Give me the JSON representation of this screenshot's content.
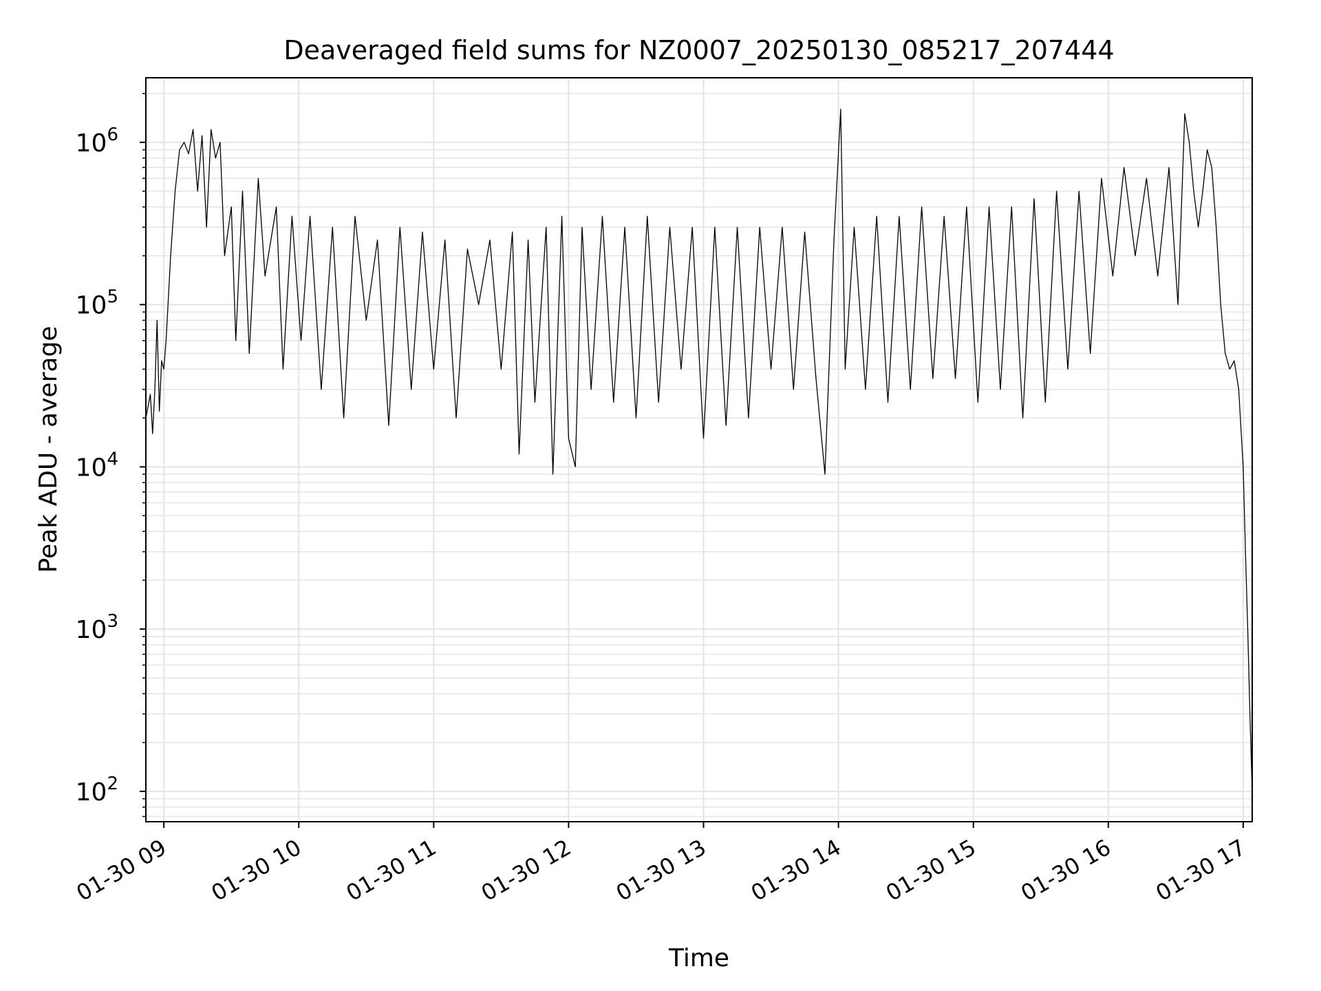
{
  "chart_data": {
    "type": "line",
    "title": "Deaveraged field sums for NZ0007_20250130_085217_207444",
    "xlabel": "Time",
    "ylabel": "Peak ADU - average",
    "yscale": "log",
    "ylim": [
      65,
      2500000
    ],
    "xlim": [
      "2025-01-30 08:52",
      "2025-01-30 17:04"
    ],
    "grid": true,
    "legend": "none",
    "line_color": "#000000",
    "x_ticks": [
      "2025-01-30 09:00",
      "2025-01-30 10:00",
      "2025-01-30 11:00",
      "2025-01-30 12:00",
      "2025-01-30 13:00",
      "2025-01-30 14:00",
      "2025-01-30 15:00",
      "2025-01-30 16:00",
      "2025-01-30 17:00"
    ],
    "x_tick_labels": [
      "01-30 09",
      "01-30 10",
      "01-30 11",
      "01-30 12",
      "01-30 13",
      "01-30 14",
      "01-30 15",
      "01-30 16",
      "01-30 17"
    ],
    "y_ticks": [
      {
        "base": "10",
        "exp": "2",
        "value": 100
      },
      {
        "base": "10",
        "exp": "3",
        "value": 1000
      },
      {
        "base": "10",
        "exp": "4",
        "value": 10000
      },
      {
        "base": "10",
        "exp": "5",
        "value": 100000
      },
      {
        "base": "10",
        "exp": "6",
        "value": 1000000
      }
    ],
    "series": [
      {
        "points": [
          [
            "2025-01-30 08:52",
            20000
          ],
          [
            "2025-01-30 08:54",
            28000
          ],
          [
            "2025-01-30 08:55",
            16000
          ],
          [
            "2025-01-30 08:56",
            30000
          ],
          [
            "2025-01-30 08:57",
            80000
          ],
          [
            "2025-01-30 08:58",
            22000
          ],
          [
            "2025-01-30 08:59",
            45000
          ],
          [
            "2025-01-30 09:00",
            40000
          ],
          [
            "2025-01-30 09:01",
            60000
          ],
          [
            "2025-01-30 09:03",
            200000
          ],
          [
            "2025-01-30 09:05",
            500000
          ],
          [
            "2025-01-30 09:07",
            900000
          ],
          [
            "2025-01-30 09:09",
            1000000
          ],
          [
            "2025-01-30 09:11",
            850000
          ],
          [
            "2025-01-30 09:13",
            1200000
          ],
          [
            "2025-01-30 09:15",
            500000
          ],
          [
            "2025-01-30 09:17",
            1100000
          ],
          [
            "2025-01-30 09:19",
            300000
          ],
          [
            "2025-01-30 09:21",
            1200000
          ],
          [
            "2025-01-30 09:23",
            800000
          ],
          [
            "2025-01-30 09:25",
            1000000
          ],
          [
            "2025-01-30 09:27",
            200000
          ],
          [
            "2025-01-30 09:30",
            400000
          ],
          [
            "2025-01-30 09:32",
            60000
          ],
          [
            "2025-01-30 09:35",
            500000
          ],
          [
            "2025-01-30 09:38",
            50000
          ],
          [
            "2025-01-30 09:42",
            600000
          ],
          [
            "2025-01-30 09:45",
            150000
          ],
          [
            "2025-01-30 09:50",
            400000
          ],
          [
            "2025-01-30 09:53",
            40000
          ],
          [
            "2025-01-30 09:57",
            350000
          ],
          [
            "2025-01-30 10:01",
            60000
          ],
          [
            "2025-01-30 10:05",
            350000
          ],
          [
            "2025-01-30 10:10",
            30000
          ],
          [
            "2025-01-30 10:15",
            300000
          ],
          [
            "2025-01-30 10:20",
            20000
          ],
          [
            "2025-01-30 10:25",
            350000
          ],
          [
            "2025-01-30 10:30",
            80000
          ],
          [
            "2025-01-30 10:35",
            250000
          ],
          [
            "2025-01-30 10:40",
            18000
          ],
          [
            "2025-01-30 10:45",
            300000
          ],
          [
            "2025-01-30 10:50",
            30000
          ],
          [
            "2025-01-30 10:55",
            280000
          ],
          [
            "2025-01-30 11:00",
            40000
          ],
          [
            "2025-01-30 11:05",
            250000
          ],
          [
            "2025-01-30 11:10",
            20000
          ],
          [
            "2025-01-30 11:15",
            220000
          ],
          [
            "2025-01-30 11:20",
            100000
          ],
          [
            "2025-01-30 11:25",
            250000
          ],
          [
            "2025-01-30 11:30",
            40000
          ],
          [
            "2025-01-30 11:35",
            280000
          ],
          [
            "2025-01-30 11:38",
            12000
          ],
          [
            "2025-01-30 11:42",
            250000
          ],
          [
            "2025-01-30 11:45",
            25000
          ],
          [
            "2025-01-30 11:50",
            300000
          ],
          [
            "2025-01-30 11:53",
            9000
          ],
          [
            "2025-01-30 11:57",
            350000
          ],
          [
            "2025-01-30 12:00",
            15000
          ],
          [
            "2025-01-30 12:03",
            10000
          ],
          [
            "2025-01-30 12:06",
            300000
          ],
          [
            "2025-01-30 12:10",
            30000
          ],
          [
            "2025-01-30 12:15",
            350000
          ],
          [
            "2025-01-30 12:20",
            25000
          ],
          [
            "2025-01-30 12:25",
            300000
          ],
          [
            "2025-01-30 12:30",
            20000
          ],
          [
            "2025-01-30 12:35",
            350000
          ],
          [
            "2025-01-30 12:40",
            25000
          ],
          [
            "2025-01-30 12:45",
            300000
          ],
          [
            "2025-01-30 12:50",
            40000
          ],
          [
            "2025-01-30 12:55",
            300000
          ],
          [
            "2025-01-30 13:00",
            15000
          ],
          [
            "2025-01-30 13:05",
            300000
          ],
          [
            "2025-01-30 13:10",
            18000
          ],
          [
            "2025-01-30 13:15",
            300000
          ],
          [
            "2025-01-30 13:20",
            20000
          ],
          [
            "2025-01-30 13:25",
            300000
          ],
          [
            "2025-01-30 13:30",
            40000
          ],
          [
            "2025-01-30 13:35",
            300000
          ],
          [
            "2025-01-30 13:40",
            30000
          ],
          [
            "2025-01-30 13:45",
            280000
          ],
          [
            "2025-01-30 13:50",
            35000
          ],
          [
            "2025-01-30 13:54",
            9000
          ],
          [
            "2025-01-30 13:58",
            250000
          ],
          [
            "2025-01-30 14:01",
            1600000
          ],
          [
            "2025-01-30 14:03",
            40000
          ],
          [
            "2025-01-30 14:07",
            300000
          ],
          [
            "2025-01-30 14:12",
            30000
          ],
          [
            "2025-01-30 14:17",
            350000
          ],
          [
            "2025-01-30 14:22",
            25000
          ],
          [
            "2025-01-30 14:27",
            350000
          ],
          [
            "2025-01-30 14:32",
            30000
          ],
          [
            "2025-01-30 14:37",
            400000
          ],
          [
            "2025-01-30 14:42",
            35000
          ],
          [
            "2025-01-30 14:47",
            350000
          ],
          [
            "2025-01-30 14:52",
            35000
          ],
          [
            "2025-01-30 14:57",
            400000
          ],
          [
            "2025-01-30 15:02",
            25000
          ],
          [
            "2025-01-30 15:07",
            400000
          ],
          [
            "2025-01-30 15:12",
            30000
          ],
          [
            "2025-01-30 15:17",
            400000
          ],
          [
            "2025-01-30 15:22",
            20000
          ],
          [
            "2025-01-30 15:27",
            450000
          ],
          [
            "2025-01-30 15:32",
            25000
          ],
          [
            "2025-01-30 15:37",
            500000
          ],
          [
            "2025-01-30 15:42",
            40000
          ],
          [
            "2025-01-30 15:47",
            500000
          ],
          [
            "2025-01-30 15:52",
            50000
          ],
          [
            "2025-01-30 15:57",
            600000
          ],
          [
            "2025-01-30 16:02",
            150000
          ],
          [
            "2025-01-30 16:07",
            700000
          ],
          [
            "2025-01-30 16:12",
            200000
          ],
          [
            "2025-01-30 16:17",
            600000
          ],
          [
            "2025-01-30 16:22",
            150000
          ],
          [
            "2025-01-30 16:27",
            700000
          ],
          [
            "2025-01-30 16:31",
            100000
          ],
          [
            "2025-01-30 16:34",
            1500000
          ],
          [
            "2025-01-30 16:36",
            1000000
          ],
          [
            "2025-01-30 16:38",
            500000
          ],
          [
            "2025-01-30 16:40",
            300000
          ],
          [
            "2025-01-30 16:42",
            500000
          ],
          [
            "2025-01-30 16:44",
            900000
          ],
          [
            "2025-01-30 16:46",
            700000
          ],
          [
            "2025-01-30 16:48",
            300000
          ],
          [
            "2025-01-30 16:50",
            100000
          ],
          [
            "2025-01-30 16:52",
            50000
          ],
          [
            "2025-01-30 16:54",
            40000
          ],
          [
            "2025-01-30 16:56",
            45000
          ],
          [
            "2025-01-30 16:58",
            30000
          ],
          [
            "2025-01-30 17:00",
            10000
          ],
          [
            "2025-01-30 17:01",
            3000
          ],
          [
            "2025-01-30 17:02",
            1000
          ],
          [
            "2025-01-30 17:03",
            300
          ],
          [
            "2025-01-30 17:04",
            100
          ]
        ]
      }
    ]
  }
}
